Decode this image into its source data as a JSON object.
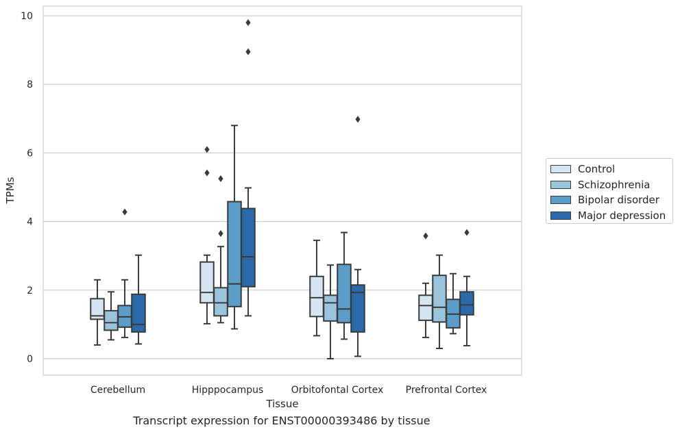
{
  "chart_data": {
    "type": "box",
    "title": "",
    "xlabel": "Tissue",
    "ylabel": "TPMs",
    "ylim": [
      -0.45,
      10.3
    ],
    "yticks": [
      0,
      2,
      4,
      6,
      8,
      10
    ],
    "ytick_labels": [
      "0",
      "2",
      "4",
      "6",
      "8",
      "10"
    ],
    "grid": true,
    "legend_position": "right",
    "categories": [
      "Cerebellum",
      "Hipppocampus",
      "Orbitofontal Cortex",
      "Prefrontal Cortex"
    ],
    "series": [
      {
        "name": "Control",
        "color": "#d6e5f3",
        "boxes": [
          {
            "whislo": 0.4,
            "q1": 1.15,
            "med": 1.25,
            "q3": 1.75,
            "whishi": 2.3,
            "fliers": []
          },
          {
            "whislo": 1.02,
            "q1": 1.63,
            "med": 1.93,
            "q3": 2.82,
            "whishi": 3.02,
            "fliers": [
              5.42,
              6.1
            ]
          },
          {
            "whislo": 0.67,
            "q1": 1.23,
            "med": 1.78,
            "q3": 2.4,
            "whishi": 3.45,
            "fliers": []
          },
          {
            "whislo": 0.62,
            "q1": 1.12,
            "med": 1.55,
            "q3": 1.85,
            "whishi": 2.2,
            "fliers": [
              3.58
            ]
          }
        ]
      },
      {
        "name": "Schizophrenia",
        "color": "#9ac3dc",
        "boxes": [
          {
            "whislo": 0.55,
            "q1": 0.83,
            "med": 1.05,
            "q3": 1.4,
            "whishi": 1.95,
            "fliers": []
          },
          {
            "whislo": 1.05,
            "q1": 1.25,
            "med": 1.63,
            "q3": 2.07,
            "whishi": 3.27,
            "fliers": [
              3.65,
              5.25
            ]
          },
          {
            "whislo": 0.0,
            "q1": 1.1,
            "med": 1.63,
            "q3": 1.85,
            "whishi": 2.73,
            "fliers": []
          },
          {
            "whislo": 0.3,
            "q1": 1.07,
            "med": 1.5,
            "q3": 2.43,
            "whishi": 3.02,
            "fliers": []
          }
        ]
      },
      {
        "name": "Bipolar disorder",
        "color": "#5b9cc8",
        "boxes": [
          {
            "whislo": 0.62,
            "q1": 0.92,
            "med": 1.22,
            "q3": 1.55,
            "whishi": 2.3,
            "fliers": [
              4.28
            ]
          },
          {
            "whislo": 0.87,
            "q1": 1.52,
            "med": 2.18,
            "q3": 4.58,
            "whishi": 6.8,
            "fliers": []
          },
          {
            "whislo": 0.57,
            "q1": 1.05,
            "med": 1.45,
            "q3": 2.75,
            "whishi": 3.68,
            "fliers": []
          },
          {
            "whislo": 0.73,
            "q1": 0.9,
            "med": 1.3,
            "q3": 1.73,
            "whishi": 2.48,
            "fliers": []
          }
        ]
      },
      {
        "name": "Major depression",
        "color": "#2a6aab",
        "boxes": [
          {
            "whislo": 0.43,
            "q1": 0.78,
            "med": 1.0,
            "q3": 1.88,
            "whishi": 3.02,
            "fliers": []
          },
          {
            "whislo": 1.25,
            "q1": 2.1,
            "med": 2.97,
            "q3": 4.38,
            "whishi": 4.98,
            "fliers": [
              8.95,
              9.8
            ]
          },
          {
            "whislo": 0.07,
            "q1": 0.78,
            "med": 1.93,
            "q3": 2.15,
            "whishi": 2.6,
            "fliers": [
              6.98
            ]
          },
          {
            "whislo": 0.38,
            "q1": 1.28,
            "med": 1.57,
            "q3": 1.95,
            "whishi": 2.4,
            "fliers": [
              3.68
            ]
          }
        ]
      }
    ]
  },
  "caption": "Transcript expression for ENST00000393486 by tissue",
  "legend": {
    "items": [
      {
        "label": "Control",
        "color": "#d6e5f3"
      },
      {
        "label": "Schizophrenia",
        "color": "#9ac3dc"
      },
      {
        "label": "Bipolar disorder",
        "color": "#5b9cc8"
      },
      {
        "label": "Major depression",
        "color": "#2a6aab"
      }
    ]
  }
}
